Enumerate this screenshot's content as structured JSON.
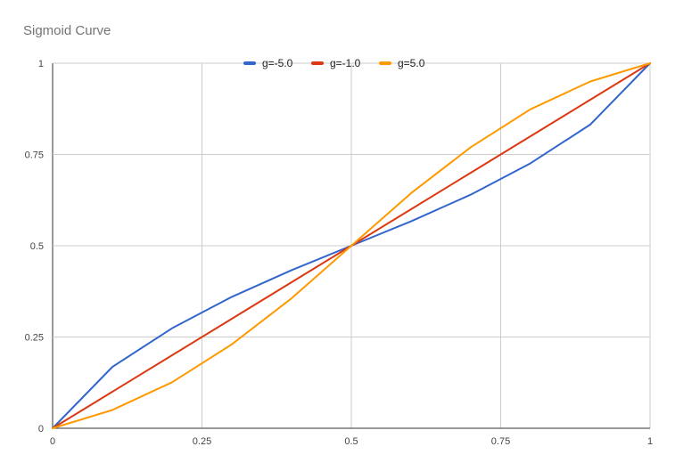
{
  "chart_data": {
    "type": "line",
    "title": "Sigmoid Curve",
    "xlabel": "",
    "ylabel": "",
    "xlim": [
      0,
      1
    ],
    "ylim": [
      0,
      1
    ],
    "grid": true,
    "legend_position": "top-center",
    "x_ticks": [
      "0",
      "0.25",
      "0.5",
      "0.75",
      "1"
    ],
    "y_ticks": [
      "0",
      "0.25",
      "0.5",
      "0.75",
      "1"
    ],
    "x": [
      0,
      0.1,
      0.2,
      0.3,
      0.4,
      0.5,
      0.6,
      0.7,
      0.8,
      0.9,
      1.0
    ],
    "series": [
      {
        "name": "g=-5.0",
        "color": "#3366cc",
        "values": [
          0,
          0.168,
          0.274,
          0.36,
          0.433,
          0.5,
          0.567,
          0.64,
          0.726,
          0.832,
          1.0
        ]
      },
      {
        "name": "g=-1.0",
        "color": "#dc3912",
        "values": [
          0,
          0.1,
          0.2,
          0.3,
          0.4,
          0.5,
          0.6,
          0.7,
          0.8,
          0.9,
          1.0
        ]
      },
      {
        "name": "g=5.0",
        "color": "#ff9900",
        "values": [
          0,
          0.05,
          0.126,
          0.23,
          0.356,
          0.5,
          0.644,
          0.77,
          0.874,
          0.95,
          1.0
        ]
      }
    ]
  }
}
